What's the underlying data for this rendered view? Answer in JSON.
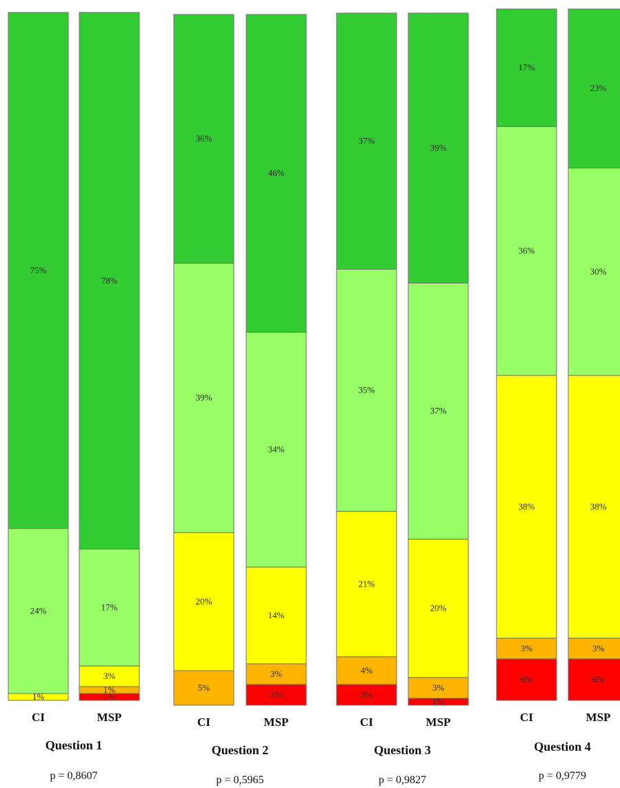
{
  "chart_data": {
    "type": "bar",
    "stacked": true,
    "normalized_percent": true,
    "colors": {
      "red": "#ff0000",
      "orange": "#ffb400",
      "yellow": "#ffff00",
      "light_green": "#99ff66",
      "green": "#33cc33"
    },
    "segment_order_bottom_to_top": [
      "red",
      "orange",
      "yellow",
      "light_green",
      "green"
    ],
    "groups": [
      {
        "title": "Question 1",
        "p_value": "p = 0,8607",
        "bars": [
          {
            "label": "CI",
            "segments": [
              {
                "color": "red",
                "value": 0,
                "label": ""
              },
              {
                "color": "orange",
                "value": 0,
                "label": ""
              },
              {
                "color": "yellow",
                "value": 1,
                "label": "1%"
              },
              {
                "color": "light_green",
                "value": 24,
                "label": "24%"
              },
              {
                "color": "green",
                "value": 75,
                "label": "75%"
              }
            ]
          },
          {
            "label": "MSP",
            "segments": [
              {
                "color": "red",
                "value": 1,
                "label": "1%"
              },
              {
                "color": "orange",
                "value": 1,
                "label": "1%"
              },
              {
                "color": "yellow",
                "value": 3,
                "label": "3%"
              },
              {
                "color": "light_green",
                "value": 17,
                "label": "17%"
              },
              {
                "color": "green",
                "value": 78,
                "label": "78%"
              }
            ]
          }
        ]
      },
      {
        "title": "Question 2",
        "p_value": "p = 0,5965",
        "bars": [
          {
            "label": "CI",
            "segments": [
              {
                "color": "red",
                "value": 0,
                "label": ""
              },
              {
                "color": "orange",
                "value": 5,
                "label": "5%"
              },
              {
                "color": "yellow",
                "value": 20,
                "label": "20%"
              },
              {
                "color": "light_green",
                "value": 39,
                "label": "39%"
              },
              {
                "color": "green",
                "value": 36,
                "label": "36%"
              }
            ]
          },
          {
            "label": "MSP",
            "segments": [
              {
                "color": "red",
                "value": 3,
                "label": "3%"
              },
              {
                "color": "orange",
                "value": 3,
                "label": "3%"
              },
              {
                "color": "yellow",
                "value": 14,
                "label": "14%"
              },
              {
                "color": "light_green",
                "value": 34,
                "label": "34%"
              },
              {
                "color": "green",
                "value": 46,
                "label": "46%"
              }
            ]
          }
        ]
      },
      {
        "title": "Question 3",
        "p_value": "p = 0,9827",
        "bars": [
          {
            "label": "CI",
            "segments": [
              {
                "color": "red",
                "value": 3,
                "label": "3%"
              },
              {
                "color": "orange",
                "value": 4,
                "label": "4%"
              },
              {
                "color": "yellow",
                "value": 21,
                "label": "21%"
              },
              {
                "color": "light_green",
                "value": 35,
                "label": "35%"
              },
              {
                "color": "green",
                "value": 37,
                "label": "37%"
              }
            ]
          },
          {
            "label": "MSP",
            "segments": [
              {
                "color": "red",
                "value": 1,
                "label": "1%"
              },
              {
                "color": "orange",
                "value": 3,
                "label": "3%"
              },
              {
                "color": "yellow",
                "value": 20,
                "label": "20%"
              },
              {
                "color": "light_green",
                "value": 37,
                "label": "37%"
              },
              {
                "color": "green",
                "value": 39,
                "label": "39%"
              }
            ]
          }
        ]
      },
      {
        "title": "Question 4",
        "p_value": "p = 0,9779",
        "bars": [
          {
            "label": "CI",
            "segments": [
              {
                "color": "red",
                "value": 6,
                "label": "6%"
              },
              {
                "color": "orange",
                "value": 3,
                "label": "3%"
              },
              {
                "color": "yellow",
                "value": 38,
                "label": "38%"
              },
              {
                "color": "light_green",
                "value": 36,
                "label": "36%"
              },
              {
                "color": "green",
                "value": 17,
                "label": "17%"
              }
            ]
          },
          {
            "label": "MSP",
            "segments": [
              {
                "color": "red",
                "value": 6,
                "label": "6%"
              },
              {
                "color": "orange",
                "value": 3,
                "label": "3%"
              },
              {
                "color": "yellow",
                "value": 38,
                "label": "38%"
              },
              {
                "color": "light_green",
                "value": 30,
                "label": "30%"
              },
              {
                "color": "green",
                "value": 23,
                "label": "23%"
              }
            ]
          }
        ]
      }
    ]
  }
}
